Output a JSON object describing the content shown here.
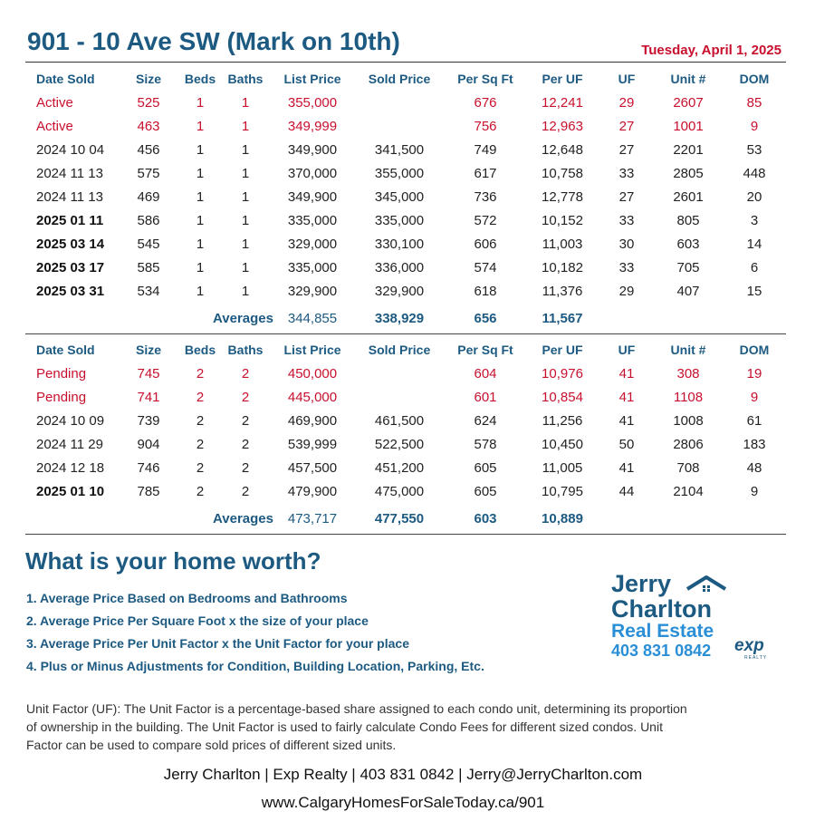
{
  "header": {
    "title": "901 - 10 Ave SW (Mark on 10th)",
    "date": "Tuesday, April 1, 2025"
  },
  "columns": [
    "Date Sold",
    "Size",
    "Beds",
    "Baths",
    "List Price",
    "Sold Price",
    "Per Sq Ft",
    "Per UF",
    "UF",
    "Unit #",
    "DOM"
  ],
  "one_bed": {
    "rows": [
      {
        "date": "Active",
        "size": "525",
        "beds": "1",
        "baths": "1",
        "list": "355,000",
        "sold": "",
        "sqft": "676",
        "uf_price": "12,241",
        "uf": "29",
        "unit": "2607",
        "dom": "85",
        "status": true,
        "bold": false
      },
      {
        "date": "Active",
        "size": "463",
        "beds": "1",
        "baths": "1",
        "list": "349,999",
        "sold": "",
        "sqft": "756",
        "uf_price": "12,963",
        "uf": "27",
        "unit": "1001",
        "dom": "9",
        "status": true,
        "bold": false
      },
      {
        "date": "2024 10 04",
        "size": "456",
        "beds": "1",
        "baths": "1",
        "list": "349,900",
        "sold": "341,500",
        "sqft": "749",
        "uf_price": "12,648",
        "uf": "27",
        "unit": "2201",
        "dom": "53",
        "status": false,
        "bold": false
      },
      {
        "date": "2024 11 13",
        "size": "575",
        "beds": "1",
        "baths": "1",
        "list": "370,000",
        "sold": "355,000",
        "sqft": "617",
        "uf_price": "10,758",
        "uf": "33",
        "unit": "2805",
        "dom": "448",
        "status": false,
        "bold": false
      },
      {
        "date": "2024 11 13",
        "size": "469",
        "beds": "1",
        "baths": "1",
        "list": "349,900",
        "sold": "345,000",
        "sqft": "736",
        "uf_price": "12,778",
        "uf": "27",
        "unit": "2601",
        "dom": "20",
        "status": false,
        "bold": false
      },
      {
        "date": "2025 01 11",
        "size": "586",
        "beds": "1",
        "baths": "1",
        "list": "335,000",
        "sold": "335,000",
        "sqft": "572",
        "uf_price": "10,152",
        "uf": "33",
        "unit": "805",
        "dom": "3",
        "status": false,
        "bold": true
      },
      {
        "date": "2025 03 14",
        "size": "545",
        "beds": "1",
        "baths": "1",
        "list": "329,000",
        "sold": "330,100",
        "sqft": "606",
        "uf_price": "11,003",
        "uf": "30",
        "unit": "603",
        "dom": "14",
        "status": false,
        "bold": true
      },
      {
        "date": "2025 03 17",
        "size": "585",
        "beds": "1",
        "baths": "1",
        "list": "335,000",
        "sold": "336,000",
        "sqft": "574",
        "uf_price": "10,182",
        "uf": "33",
        "unit": "705",
        "dom": "6",
        "status": false,
        "bold": true
      },
      {
        "date": "2025 03 31",
        "size": "534",
        "beds": "1",
        "baths": "1",
        "list": "329,900",
        "sold": "329,900",
        "sqft": "618",
        "uf_price": "11,376",
        "uf": "29",
        "unit": "407",
        "dom": "15",
        "status": false,
        "bold": true
      }
    ],
    "averages": {
      "label": "Averages",
      "list": "344,855",
      "sold": "338,929",
      "sqft": "656",
      "uf_price": "11,567"
    }
  },
  "two_bed": {
    "rows": [
      {
        "date": "Pending",
        "size": "745",
        "beds": "2",
        "baths": "2",
        "list": "450,000",
        "sold": "",
        "sqft": "604",
        "uf_price": "10,976",
        "uf": "41",
        "unit": "308",
        "dom": "19",
        "status": true,
        "bold": false
      },
      {
        "date": "Pending",
        "size": "741",
        "beds": "2",
        "baths": "2",
        "list": "445,000",
        "sold": "",
        "sqft": "601",
        "uf_price": "10,854",
        "uf": "41",
        "unit": "1108",
        "dom": "9",
        "status": true,
        "bold": false
      },
      {
        "date": "2024 10 09",
        "size": "739",
        "beds": "2",
        "baths": "2",
        "list": "469,900",
        "sold": "461,500",
        "sqft": "624",
        "uf_price": "11,256",
        "uf": "41",
        "unit": "1008",
        "dom": "61",
        "status": false,
        "bold": false
      },
      {
        "date": "2024 11 29",
        "size": "904",
        "beds": "2",
        "baths": "2",
        "list": "539,999",
        "sold": "522,500",
        "sqft": "578",
        "uf_price": "10,450",
        "uf": "50",
        "unit": "2806",
        "dom": "183",
        "status": false,
        "bold": false
      },
      {
        "date": "2024 12 18",
        "size": "746",
        "beds": "2",
        "baths": "2",
        "list": "457,500",
        "sold": "451,200",
        "sqft": "605",
        "uf_price": "11,005",
        "uf": "41",
        "unit": "708",
        "dom": "48",
        "status": false,
        "bold": false
      },
      {
        "date": "2025 01 10",
        "size": "785",
        "beds": "2",
        "baths": "2",
        "list": "479,900",
        "sold": "475,000",
        "sqft": "605",
        "uf_price": "10,795",
        "uf": "44",
        "unit": "2104",
        "dom": "9",
        "status": false,
        "bold": true
      }
    ],
    "averages": {
      "label": "Averages",
      "list": "473,717",
      "sold": "477,550",
      "sqft": "603",
      "uf_price": "10,889"
    }
  },
  "worth": {
    "title": "What is your home worth?",
    "items": [
      "1. Average Price Based on Bedrooms and Bathrooms",
      "2. Average Price Per Square Foot x the size of your place",
      "3. Average Price Per Unit Factor x the Unit Factor for your place",
      "4. Plus or Minus Adjustments for Condition, Building Location, Parking, Etc."
    ]
  },
  "logo": {
    "line1": "Jerry",
    "line2": "Charlton",
    "line3": "Real Estate",
    "phone": "403 831 0842",
    "exp": "exp",
    "exp_sub": "REALTY",
    "icon": "house-roof-icon"
  },
  "uf_note": "Unit Factor (UF): The Unit Factor is a percentage-based share assigned to each condo unit, determining its proportion of ownership in the building. The Unit Factor is used to fairly calculate Condo Fees for different sized condos. Unit Factor can be used to compare sold prices of different sized units.",
  "footer": {
    "contact": "Jerry Charlton | Exp Realty | 403 831 0842 | Jerry@JerryCharlton.com",
    "url": "www.CalgaryHomesForSaleToday.ca/901"
  },
  "colors": {
    "brand_blue": "#1d5a82",
    "status_red": "#c8102e",
    "logo_light_blue": "#2a8fd6"
  }
}
